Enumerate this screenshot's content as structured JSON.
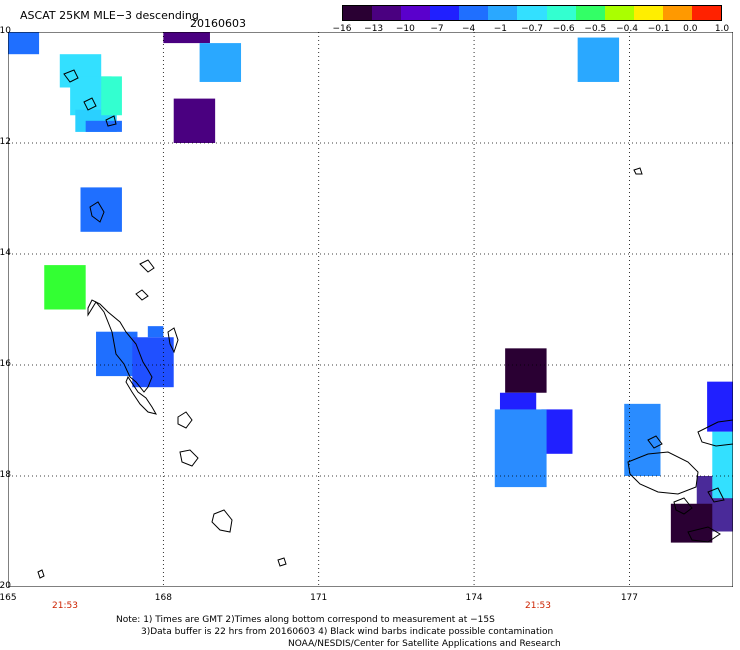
{
  "header": {
    "title": "ASCAT 25KM MLE−3 descending",
    "date": "20160603"
  },
  "colorbar": {
    "labels": [
      "−16",
      "−13",
      "−10",
      "−7",
      "−4",
      "−1",
      "−0.7",
      "−0.6",
      "−0.5",
      "−0.4",
      "−0.1",
      "0.0",
      "1.0"
    ],
    "colors": [
      "#2a0033",
      "#4a0080",
      "#5a00cc",
      "#2020ff",
      "#1f6fff",
      "#2aa8ff",
      "#33e0ff",
      "#33ffd0",
      "#33ff66",
      "#aaff00",
      "#ffee00",
      "#ff9900",
      "#ff2200"
    ]
  },
  "axes": {
    "lat_labels": [
      "−10",
      "−12",
      "−14",
      "−16",
      "−18",
      "−20"
    ],
    "lon_labels": [
      "165",
      "168",
      "171",
      "174",
      "177"
    ],
    "time_labels": [
      "21:53",
      "21:53"
    ]
  },
  "notes": {
    "line1": "Note: 1) Times are GMT 2)Times along bottom correspond to measurement at −15S",
    "line2": "3)Data buffer is 22 hrs from 20160603 4) Black wind barbs indicate possible contamination",
    "line3": "NOAA/NESDIS/Center for Satellite Applications and Research"
  },
  "map": {
    "lon_range": [
      165,
      179
    ],
    "lat_range": [
      -20,
      -10
    ],
    "grid": "on, dotted",
    "cells": [
      {
        "lon0": 165.0,
        "lon1": 165.6,
        "lat0": -10.4,
        "lat1": -10.0,
        "color": "#1f6fff"
      },
      {
        "lon0": 166.0,
        "lon1": 166.8,
        "lat0": -11.0,
        "lat1": -10.4,
        "color": "#33e0ff"
      },
      {
        "lon0": 166.2,
        "lon1": 167.0,
        "lat0": -11.5,
        "lat1": -10.8,
        "color": "#33e0ff"
      },
      {
        "lon0": 166.3,
        "lon1": 167.1,
        "lat0": -11.8,
        "lat1": -11.4,
        "color": "#2ad0ff"
      },
      {
        "lon0": 166.8,
        "lon1": 167.2,
        "lat0": -11.5,
        "lat1": -10.8,
        "color": "#33ffd0"
      },
      {
        "lon0": 166.5,
        "lon1": 167.2,
        "lat0": -11.8,
        "lat1": -11.6,
        "color": "#1f6fff"
      },
      {
        "lon0": 168.0,
        "lon1": 168.9,
        "lat0": -10.2,
        "lat1": -10.0,
        "color": "#4a0080"
      },
      {
        "lon0": 168.7,
        "lon1": 169.5,
        "lat0": -10.9,
        "lat1": -10.2,
        "color": "#2aa8ff"
      },
      {
        "lon0": 168.2,
        "lon1": 169.0,
        "lat0": -12.0,
        "lat1": -11.2,
        "color": "#4a0080"
      },
      {
        "lon0": 166.4,
        "lon1": 167.2,
        "lat0": -13.6,
        "lat1": -12.8,
        "color": "#1f6fff"
      },
      {
        "lon0": 165.7,
        "lon1": 166.5,
        "lat0": -15.0,
        "lat1": -14.2,
        "color": "#33ff33"
      },
      {
        "lon0": 166.7,
        "lon1": 167.5,
        "lat0": -16.2,
        "lat1": -15.4,
        "color": "#1f6fff"
      },
      {
        "lon0": 167.4,
        "lon1": 168.2,
        "lat0": -16.4,
        "lat1": -15.5,
        "color": "#2050ff"
      },
      {
        "lon0": 167.7,
        "lon1": 168.0,
        "lat0": -15.5,
        "lat1": -15.3,
        "color": "#1f6fff"
      },
      {
        "lon0": 174.6,
        "lon1": 175.4,
        "lat0": -16.5,
        "lat1": -15.7,
        "color": "#2a0033"
      },
      {
        "lon0": 174.5,
        "lon1": 175.2,
        "lat0": -17.2,
        "lat1": -16.5,
        "color": "#2020ff"
      },
      {
        "lon0": 175.3,
        "lon1": 175.9,
        "lat0": -17.6,
        "lat1": -16.8,
        "color": "#2020ff"
      },
      {
        "lon0": 174.4,
        "lon1": 175.4,
        "lat0": -18.2,
        "lat1": -16.8,
        "color": "#2a8cff"
      },
      {
        "lon0": 176.0,
        "lon1": 176.8,
        "lat0": -10.9,
        "lat1": -10.1,
        "color": "#2aa8ff"
      },
      {
        "lon0": 176.9,
        "lon1": 177.6,
        "lat0": -18.0,
        "lat1": -16.7,
        "color": "#2a8cff"
      },
      {
        "lon0": 178.3,
        "lon1": 179.0,
        "lat0": -19.0,
        "lat1": -18.0,
        "color": "#4a2a99"
      },
      {
        "lon0": 177.8,
        "lon1": 178.6,
        "lat0": -19.2,
        "lat1": -18.5,
        "color": "#2a0033"
      },
      {
        "lon0": 178.6,
        "lon1": 179.0,
        "lat0": -18.4,
        "lat1": -17.2,
        "color": "#33e0ff"
      },
      {
        "lon0": 178.5,
        "lon1": 179.0,
        "lat0": -17.2,
        "lat1": -16.3,
        "color": "#2020ff"
      }
    ]
  }
}
